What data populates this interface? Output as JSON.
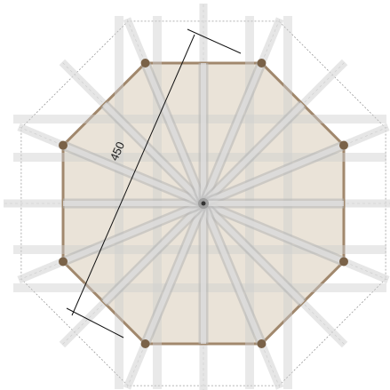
{
  "drawing": {
    "dimension_label": "450",
    "colors": {
      "background": "#ffffff",
      "octagon_fill": "#e9e2d6",
      "octagon_edge": "#9c8266",
      "post": "#7a6248",
      "beam": "#cfcfcf",
      "beam_edge": "#b5b5b5",
      "dashed_outline": "#9a9a9a",
      "dimension_line": "#111111"
    },
    "icons": {
      "center": "hub-star-icon",
      "post": "post-node-icon"
    }
  }
}
